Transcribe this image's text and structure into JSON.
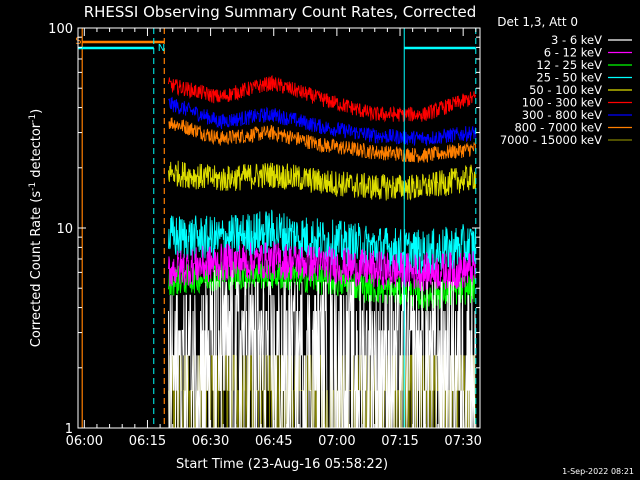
{
  "chart_data": {
    "type": "line",
    "title": "RHESSI Observing Summary Count Rates, Corrected",
    "xlabel": "Start Time (23-Aug-16 05:58:22)",
    "ylabel": "Corrected Count Rate (s",
    "ylabel_sup1": "-1",
    "ylabel_mid": " detector",
    "ylabel_sup2": "-1",
    "ylabel_end": ")",
    "y_scale": "log",
    "ylim": [
      1,
      100
    ],
    "xlim_minutes": [
      -1.5,
      94
    ],
    "xtick_labels": [
      "06:00",
      "06:15",
      "06:30",
      "06:45",
      "07:00",
      "07:15",
      "07:30"
    ],
    "xtick_minutes": [
      0,
      15,
      30,
      45,
      60,
      75,
      90
    ],
    "ytick_labels": [
      "1",
      "10",
      "100"
    ],
    "ytick_values": [
      1,
      10,
      100
    ],
    "grid": false,
    "legend_position": "right",
    "legend_header": "Det 1,3, Att 0",
    "timestamp": "1-Sep-2022 08:21",
    "series": [
      {
        "name": "3 - 6 keV",
        "color": "#ffffff",
        "mean": [
          2.0,
          2.7,
          2.5,
          2.4,
          2.3,
          2.3,
          2.5
        ],
        "scatter": 0.35,
        "quantized": true
      },
      {
        "name": "6 - 12 keV",
        "color": "#ff00ff",
        "mean": [
          6.2,
          6.7,
          6.9,
          6.6,
          6.2,
          6.0,
          6.2
        ],
        "scatter": 0.1
      },
      {
        "name": "12 - 25 keV",
        "color": "#00ff00",
        "mean": [
          5.4,
          5.8,
          5.9,
          5.5,
          5.0,
          4.6,
          5.0
        ],
        "scatter": 0.08
      },
      {
        "name": "25 - 50 keV",
        "color": "#00ffff",
        "mean": [
          9.0,
          8.8,
          9.6,
          8.6,
          8.0,
          7.5,
          8.2
        ],
        "scatter": 0.12
      },
      {
        "name": "50 - 100 keV",
        "color": "#dddd00",
        "mean": [
          19.0,
          17.5,
          18.5,
          17.0,
          16.0,
          16.0,
          18.0
        ],
        "scatter": 0.07
      },
      {
        "name": "100 - 300 keV",
        "color": "#ff0000",
        "mean": [
          52,
          45,
          53,
          44,
          37,
          37,
          45
        ],
        "scatter": 0.04
      },
      {
        "name": "300 - 800 keV",
        "color": "#0000ff",
        "mean": [
          42,
          34,
          37,
          32,
          29,
          28,
          30
        ],
        "scatter": 0.04
      },
      {
        "name": "800 - 7000 keV",
        "color": "#ff7f00",
        "mean": [
          34,
          28,
          30,
          26,
          24,
          23,
          25
        ],
        "scatter": 0.04
      },
      {
        "name": "7000 - 15000 keV",
        "color": "#808000",
        "mean": [
          1.4,
          1.6,
          1.5,
          1.4,
          1.4,
          1.5,
          1.5
        ],
        "scatter": 0.2,
        "quantized": true
      }
    ],
    "series_time_minutes": [
      20.0,
      93.0
    ],
    "annotations": {
      "saa_marker": "S",
      "night_marker": "N",
      "saa_start_minutes": -0.5,
      "saa_end_minutes": 19.0,
      "night_start_minutes": 16.5,
      "night_end_minutes": 76.0
    }
  }
}
